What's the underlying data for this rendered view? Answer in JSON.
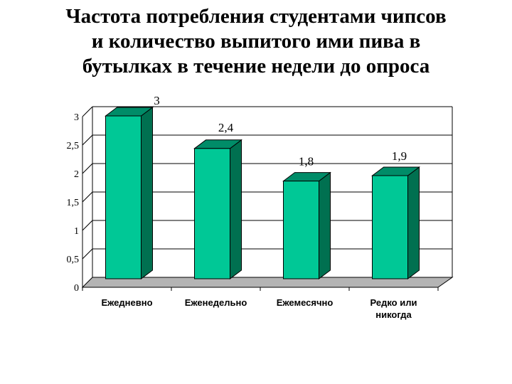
{
  "title_lines": [
    "Частота потребления студентами чипсов",
    "и количество выпитого ими пива в",
    "бутылках в течение недели до опроса"
  ],
  "colors": {
    "bar_front": "#00c896",
    "bar_side": "#007050",
    "bar_top": "#008c68",
    "floor": "#b4b4b4",
    "grid": "#000000"
  },
  "chart_data": {
    "type": "bar",
    "categories": [
      [
        "Ежедневно"
      ],
      [
        "Еженедельно"
      ],
      [
        "Ежемесячно"
      ],
      [
        "Редко или",
        "никогда"
      ]
    ],
    "values": [
      3,
      2.4,
      1.8,
      1.9
    ],
    "value_labels": [
      "3",
      "2,4",
      "1,8",
      "1,9"
    ],
    "y_ticks": [
      "0",
      "0,5",
      "1",
      "1,5",
      "2",
      "2,5",
      "3"
    ],
    "ylim": [
      0,
      3
    ],
    "grid": true,
    "style": "3d-bar"
  }
}
